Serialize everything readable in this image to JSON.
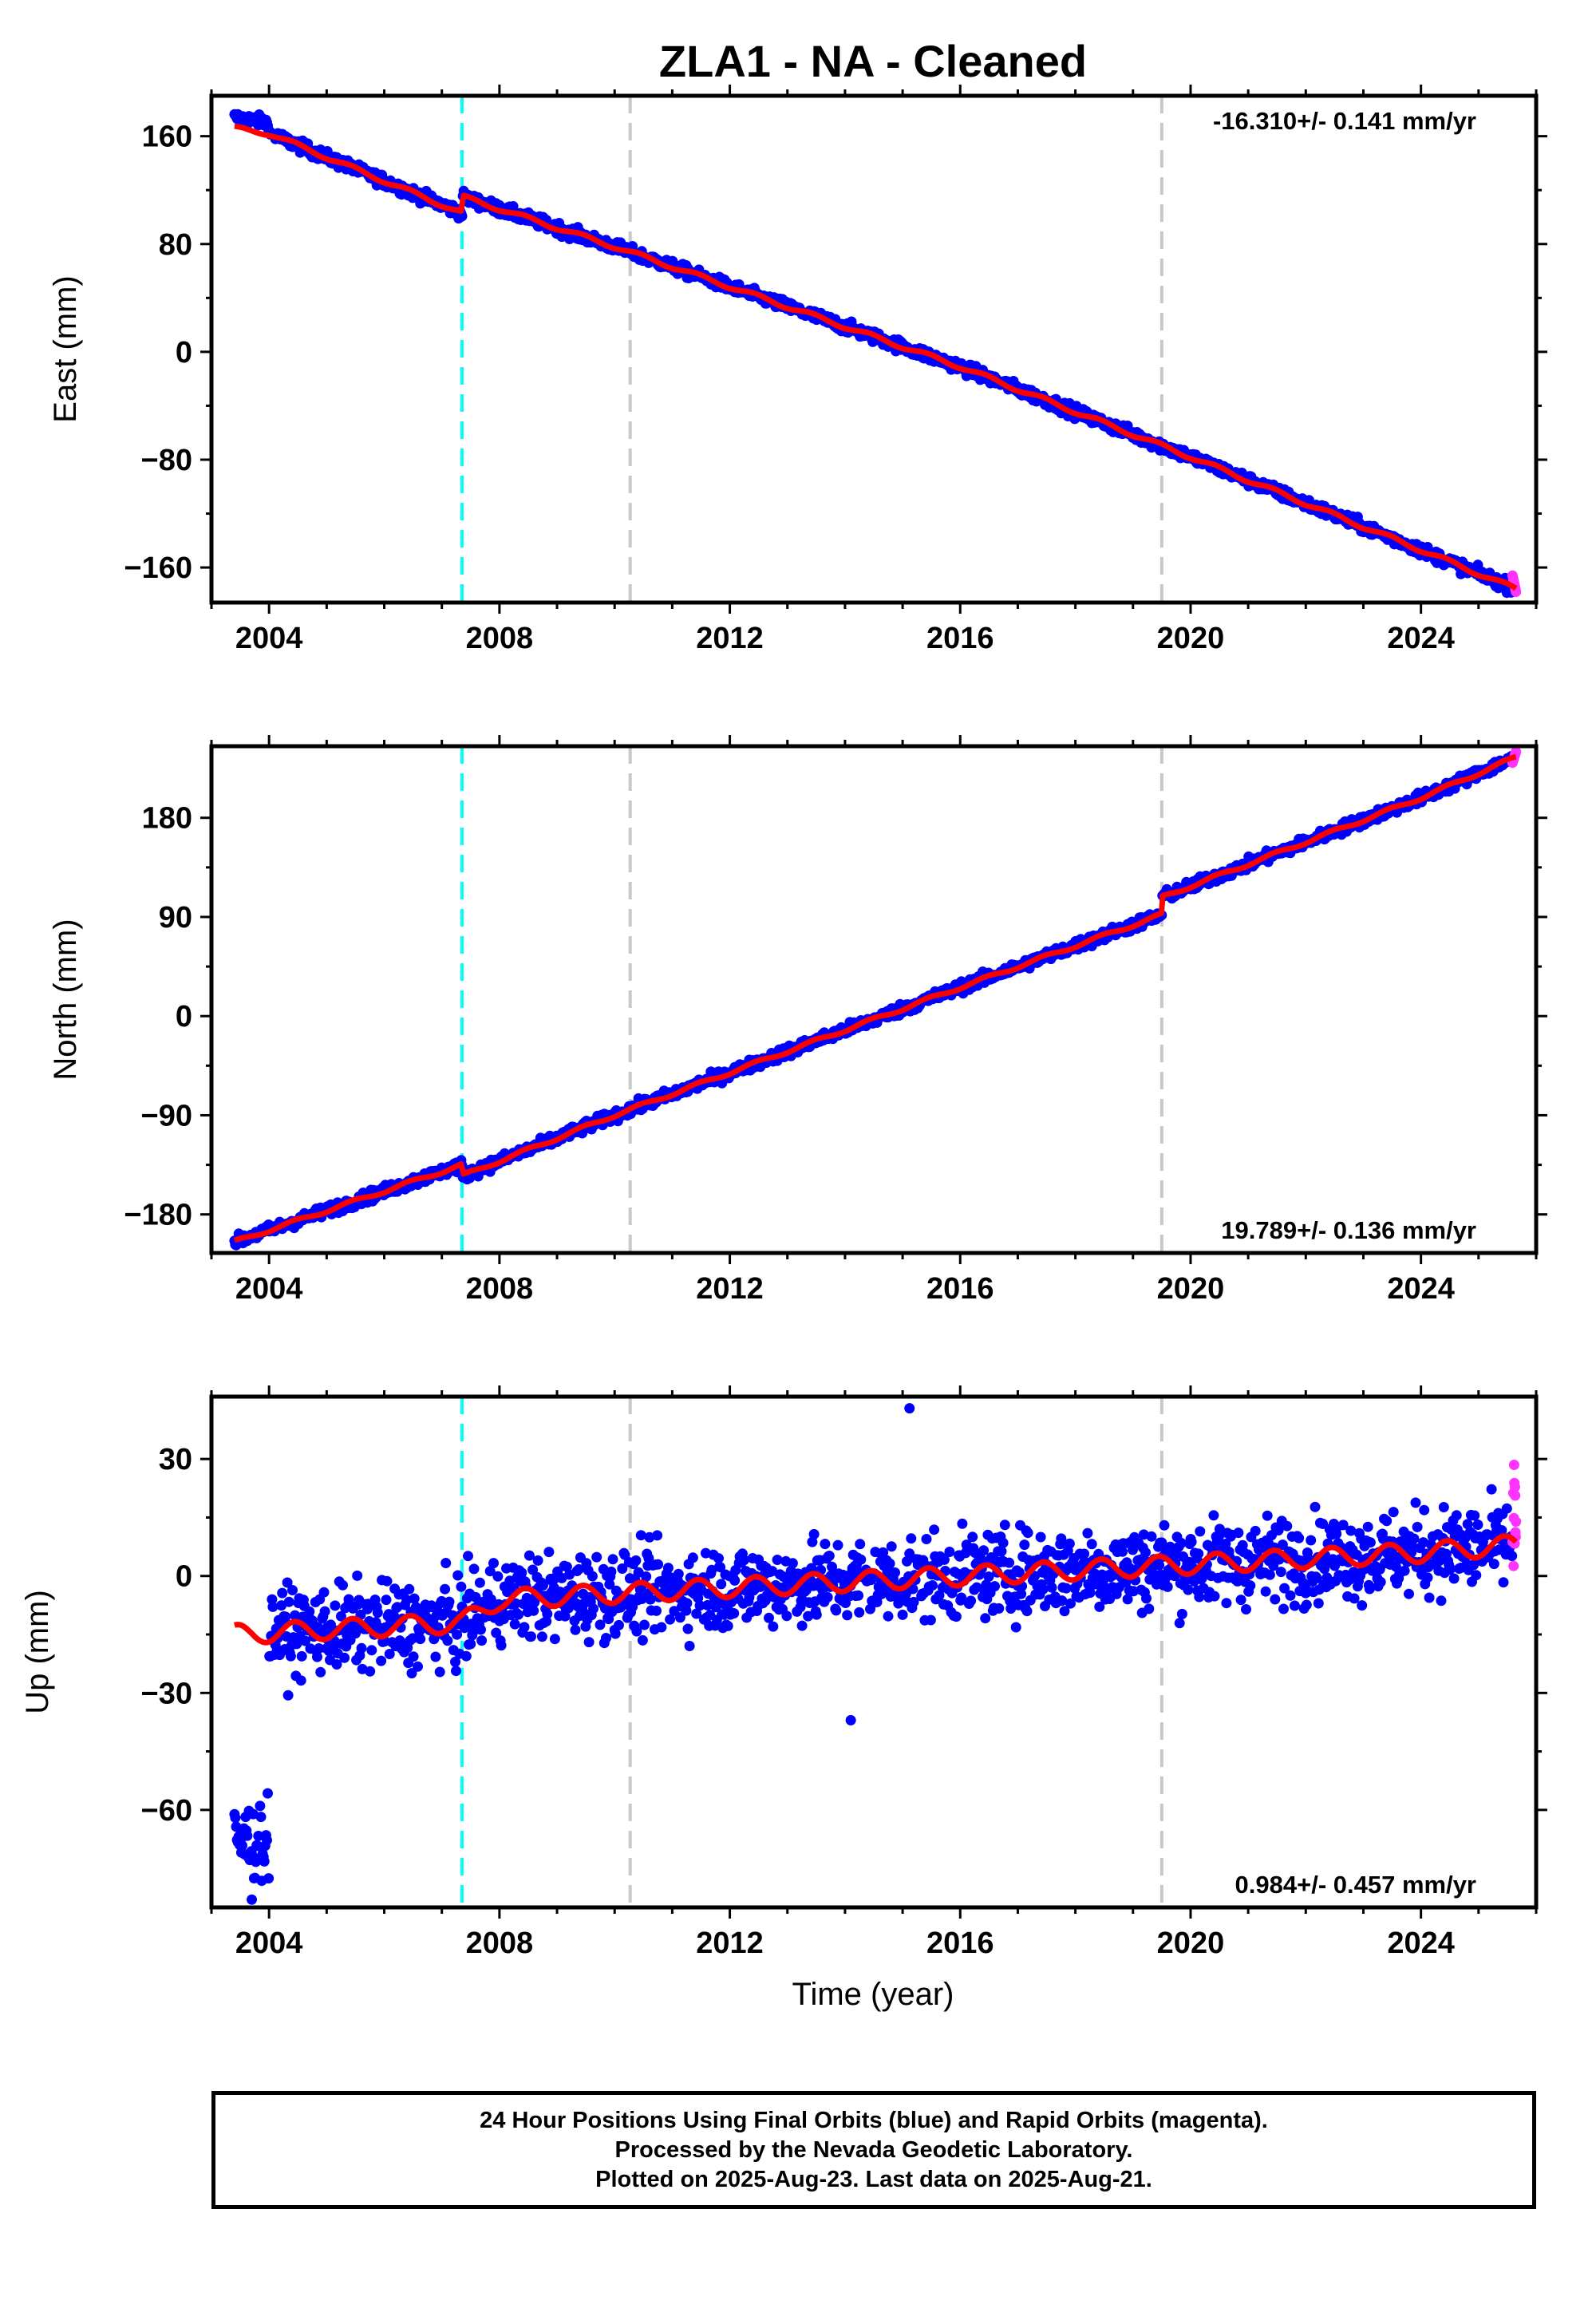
{
  "title": "ZLA1  - NA - Cleaned",
  "x_axis_label": "Time (year)",
  "caption": [
    "24 Hour Positions Using Final Orbits (blue) and Rapid Orbits (magenta).",
    "Processed by the Nevada Geodetic Laboratory.",
    "Plotted on 2025-Aug-23. Last data on 2025-Aug-21."
  ],
  "colors": {
    "final_orbits": "#0000ff",
    "rapid_orbits": "#ff33ff",
    "model_fit": "#ff0000",
    "antenna_change": "#00ffff",
    "event_marker": "#c8c8c8"
  },
  "chart_data": [
    {
      "type": "scatter",
      "panel": "east",
      "ylabel": "East (mm)",
      "xlim": [
        2003.0,
        2026.0
      ],
      "ylim": [
        -186,
        190
      ],
      "x_ticks": [
        2004,
        2008,
        2012,
        2016,
        2020,
        2024
      ],
      "y_ticks": [
        -160,
        -80,
        0,
        80,
        160
      ],
      "rate_label": "-16.310+/- 0.141 mm/yr",
      "rate_label_position": "top-right",
      "vertical_lines": [
        {
          "x": 2007.35,
          "style": "cyan-dashed"
        },
        {
          "x": 2010.27,
          "style": "gray-dashed"
        },
        {
          "x": 2019.5,
          "style": "gray-dashed"
        }
      ],
      "trend": {
        "x": [
          2003.4,
          2004.0,
          2007.35,
          2007.36,
          2010.0,
          2016.0,
          2020.0,
          2024.0,
          2025.65
        ],
        "y": [
          166,
          162,
          103,
          115,
          78,
          -11,
          -78,
          -147,
          -176
        ]
      },
      "series": [
        {
          "name": "Final Orbits",
          "x_range": [
            2003.4,
            2025.58
          ],
          "y_end": [
            172,
            -172
          ]
        },
        {
          "name": "Rapid Orbits",
          "x_range": [
            2025.59,
            2025.65
          ],
          "y_end": [
            -166,
            -178
          ]
        }
      ]
    },
    {
      "type": "scatter",
      "panel": "north",
      "ylabel": "North (mm)",
      "xlim": [
        2003.0,
        2026.0
      ],
      "ylim": [
        -215,
        245
      ],
      "x_ticks": [
        2004,
        2008,
        2012,
        2016,
        2020,
        2024
      ],
      "y_ticks": [
        -180,
        -90,
        0,
        90,
        180
      ],
      "rate_label": "19.789+/- 0.136 mm/yr",
      "rate_label_position": "bottom-right",
      "vertical_lines": [
        {
          "x": 2007.35,
          "style": "cyan-dashed"
        },
        {
          "x": 2010.27,
          "style": "gray-dashed"
        },
        {
          "x": 2019.5,
          "style": "gray-dashed"
        }
      ],
      "trend": {
        "x": [
          2003.4,
          2007.35,
          2007.36,
          2010.0,
          2016.0,
          2019.5,
          2019.51,
          2024.0,
          2025.65
        ],
        "y": [
          -205,
          -135,
          -145,
          -90,
          26,
          92,
          108,
          198,
          235
        ]
      },
      "series": [
        {
          "name": "Final Orbits",
          "x_range": [
            2003.4,
            2025.58
          ],
          "y_end": [
            -205,
            230
          ]
        },
        {
          "name": "Rapid Orbits",
          "x_range": [
            2025.59,
            2025.65
          ],
          "y_end": [
            230,
            240
          ]
        }
      ]
    },
    {
      "type": "scatter",
      "panel": "up",
      "ylabel": "Up (mm)",
      "xlim": [
        2003.0,
        2026.0
      ],
      "ylim": [
        -85,
        46
      ],
      "x_ticks": [
        2004,
        2008,
        2012,
        2016,
        2020,
        2024
      ],
      "y_ticks": [
        -60,
        -30,
        0,
        30
      ],
      "rate_label": "0.984+/- 0.457 mm/yr",
      "rate_label_position": "bottom-right",
      "vertical_lines": [
        {
          "x": 2007.35,
          "style": "cyan-dashed"
        },
        {
          "x": 2010.27,
          "style": "gray-dashed"
        },
        {
          "x": 2019.5,
          "style": "gray-dashed"
        }
      ],
      "trend": {
        "x": [
          2003.4,
          2006.0,
          2007.35,
          2008.0,
          2012.0,
          2016.0,
          2020.0,
          2024.0,
          2025.65
        ],
        "y": [
          -15,
          -13,
          -12,
          -6,
          -3,
          0,
          3,
          6,
          8
        ]
      },
      "series": [
        {
          "name": "Final Orbits",
          "x_range": [
            2003.4,
            2025.58
          ],
          "y_range_early": [
            -83,
            -55
          ],
          "y_spread": [
            -20,
            22
          ]
        },
        {
          "name": "Rapid Orbits",
          "x_range": [
            2025.59,
            2025.65
          ],
          "y_spread": [
            2,
            30
          ]
        }
      ],
      "outliers": [
        {
          "x": 2015.12,
          "y": 43
        },
        {
          "x": 2014.1,
          "y": -37
        },
        {
          "x": 2003.7,
          "y": -83
        }
      ]
    }
  ]
}
